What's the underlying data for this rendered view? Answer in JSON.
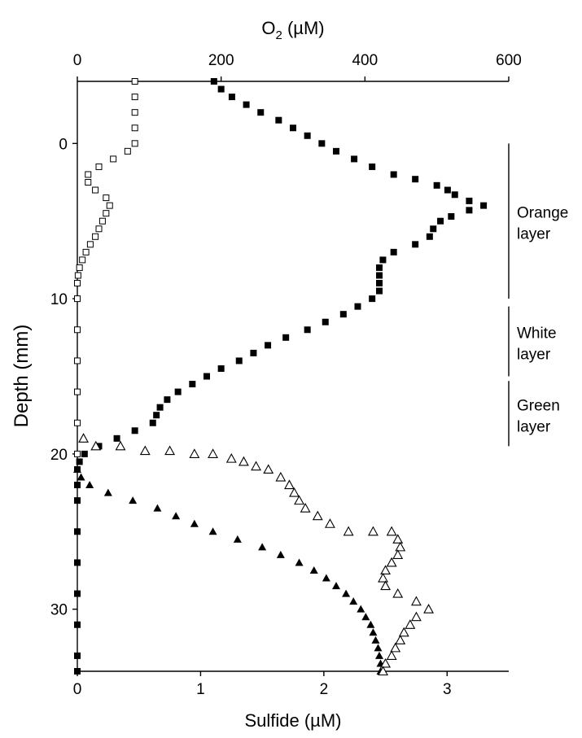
{
  "chart_data": {
    "type": "scatter",
    "top_axis": {
      "label": "O₂ (µM)",
      "range": [
        0,
        600
      ],
      "ticks": [
        "0",
        "200",
        "400",
        "600"
      ],
      "tick_values": [
        0,
        200,
        400,
        600
      ]
    },
    "bottom_axis": {
      "label": "Sulfide (µM)",
      "range": [
        0,
        3.5
      ],
      "ticks": [
        "0",
        "1",
        "2",
        "3"
      ],
      "tick_values": [
        0,
        1,
        2,
        3
      ]
    },
    "y_axis": {
      "label": "Depth (mm)",
      "range": [
        -4,
        34
      ],
      "inverted": true,
      "ticks": [
        "0",
        "10",
        "20",
        "30"
      ],
      "tick_values": [
        0,
        10,
        20,
        30
      ]
    },
    "layers": [
      {
        "label_lines": [
          "Orange",
          "layer"
        ],
        "from": 0,
        "to": 10
      },
      {
        "label_lines": [
          "White",
          "layer"
        ],
        "from": 10.5,
        "to": 15
      },
      {
        "label_lines": [
          "Green",
          "layer"
        ],
        "from": 15.3,
        "to": 19.5
      }
    ],
    "series": [
      {
        "marker": "filled-square",
        "axis": "top",
        "color": "#000000",
        "points": [
          [
            190,
            -4
          ],
          [
            200,
            -3.5
          ],
          [
            215,
            -3
          ],
          [
            235,
            -2.5
          ],
          [
            255,
            -2
          ],
          [
            280,
            -1.5
          ],
          [
            300,
            -1
          ],
          [
            320,
            -0.5
          ],
          [
            340,
            0
          ],
          [
            360,
            0.5
          ],
          [
            385,
            1
          ],
          [
            410,
            1.5
          ],
          [
            440,
            2
          ],
          [
            470,
            2.3
          ],
          [
            500,
            2.7
          ],
          [
            515,
            3
          ],
          [
            525,
            3.3
          ],
          [
            545,
            3.7
          ],
          [
            565,
            4
          ],
          [
            545,
            4.3
          ],
          [
            520,
            4.7
          ],
          [
            505,
            5
          ],
          [
            495,
            5.5
          ],
          [
            490,
            6
          ],
          [
            470,
            6.5
          ],
          [
            440,
            7
          ],
          [
            425,
            7.5
          ],
          [
            420,
            8
          ],
          [
            420,
            8.5
          ],
          [
            420,
            9
          ],
          [
            420,
            9.5
          ],
          [
            410,
            10
          ],
          [
            390,
            10.5
          ],
          [
            370,
            11
          ],
          [
            345,
            11.5
          ],
          [
            320,
            12
          ],
          [
            290,
            12.5
          ],
          [
            265,
            13
          ],
          [
            245,
            13.5
          ],
          [
            225,
            14
          ],
          [
            200,
            14.5
          ],
          [
            180,
            15
          ],
          [
            160,
            15.5
          ],
          [
            140,
            16
          ],
          [
            125,
            16.5
          ],
          [
            115,
            17
          ],
          [
            110,
            17.5
          ],
          [
            105,
            18
          ],
          [
            80,
            18.5
          ],
          [
            55,
            19
          ],
          [
            30,
            19.5
          ],
          [
            10,
            20
          ],
          [
            3,
            20.5
          ],
          [
            0,
            21
          ],
          [
            0,
            22
          ],
          [
            0,
            23
          ],
          [
            0,
            25
          ],
          [
            0,
            27
          ],
          [
            0,
            29
          ],
          [
            0,
            31
          ],
          [
            0,
            33
          ],
          [
            0,
            34
          ]
        ]
      },
      {
        "marker": "open-square",
        "axis": "top",
        "color": "#000000",
        "points": [
          [
            80,
            -4
          ],
          [
            80,
            -3
          ],
          [
            80,
            -2
          ],
          [
            80,
            -1
          ],
          [
            80,
            0
          ],
          [
            70,
            0.5
          ],
          [
            50,
            1
          ],
          [
            30,
            1.5
          ],
          [
            15,
            2
          ],
          [
            15,
            2.5
          ],
          [
            25,
            3
          ],
          [
            40,
            3.5
          ],
          [
            45,
            4
          ],
          [
            40,
            4.5
          ],
          [
            35,
            5
          ],
          [
            30,
            5.5
          ],
          [
            25,
            6
          ],
          [
            18,
            6.5
          ],
          [
            12,
            7
          ],
          [
            7,
            7.5
          ],
          [
            3,
            8
          ],
          [
            1,
            8.5
          ],
          [
            0,
            9
          ],
          [
            0,
            10
          ],
          [
            0,
            12
          ],
          [
            0,
            14
          ],
          [
            0,
            16
          ],
          [
            0,
            18
          ],
          [
            0,
            20
          ]
        ]
      },
      {
        "marker": "filled-triangle",
        "axis": "bottom",
        "color": "#000000",
        "points": [
          [
            0,
            21
          ],
          [
            0.03,
            21.5
          ],
          [
            0.1,
            22
          ],
          [
            0.25,
            22.5
          ],
          [
            0.45,
            23
          ],
          [
            0.65,
            23.5
          ],
          [
            0.8,
            24
          ],
          [
            0.95,
            24.5
          ],
          [
            1.1,
            25
          ],
          [
            1.3,
            25.5
          ],
          [
            1.5,
            26
          ],
          [
            1.65,
            26.5
          ],
          [
            1.8,
            27
          ],
          [
            1.92,
            27.5
          ],
          [
            2.02,
            28
          ],
          [
            2.1,
            28.5
          ],
          [
            2.18,
            29
          ],
          [
            2.24,
            29.5
          ],
          [
            2.3,
            30
          ],
          [
            2.34,
            30.5
          ],
          [
            2.38,
            31
          ],
          [
            2.4,
            31.5
          ],
          [
            2.42,
            32
          ],
          [
            2.44,
            32.5
          ],
          [
            2.45,
            33
          ],
          [
            2.46,
            33.5
          ],
          [
            2.46,
            34
          ]
        ]
      },
      {
        "marker": "open-triangle",
        "axis": "bottom",
        "color": "#000000",
        "points": [
          [
            0.05,
            19
          ],
          [
            0.15,
            19.5
          ],
          [
            0.35,
            19.5
          ],
          [
            0.55,
            19.8
          ],
          [
            0.75,
            19.8
          ],
          [
            0.95,
            20
          ],
          [
            1.1,
            20
          ],
          [
            1.25,
            20.3
          ],
          [
            1.35,
            20.5
          ],
          [
            1.45,
            20.8
          ],
          [
            1.55,
            21
          ],
          [
            1.65,
            21.5
          ],
          [
            1.72,
            22
          ],
          [
            1.76,
            22.5
          ],
          [
            1.8,
            23
          ],
          [
            1.85,
            23.5
          ],
          [
            1.95,
            24
          ],
          [
            2.05,
            24.5
          ],
          [
            2.2,
            25
          ],
          [
            2.4,
            25
          ],
          [
            2.55,
            25
          ],
          [
            2.6,
            25.5
          ],
          [
            2.62,
            26
          ],
          [
            2.6,
            26.5
          ],
          [
            2.55,
            27
          ],
          [
            2.5,
            27.5
          ],
          [
            2.48,
            28
          ],
          [
            2.5,
            28.5
          ],
          [
            2.6,
            29
          ],
          [
            2.75,
            29.5
          ],
          [
            2.85,
            30
          ],
          [
            2.75,
            30.5
          ],
          [
            2.7,
            31
          ],
          [
            2.65,
            31.5
          ],
          [
            2.62,
            32
          ],
          [
            2.58,
            32.5
          ],
          [
            2.55,
            33
          ],
          [
            2.5,
            33.5
          ],
          [
            2.48,
            34
          ]
        ]
      }
    ]
  }
}
